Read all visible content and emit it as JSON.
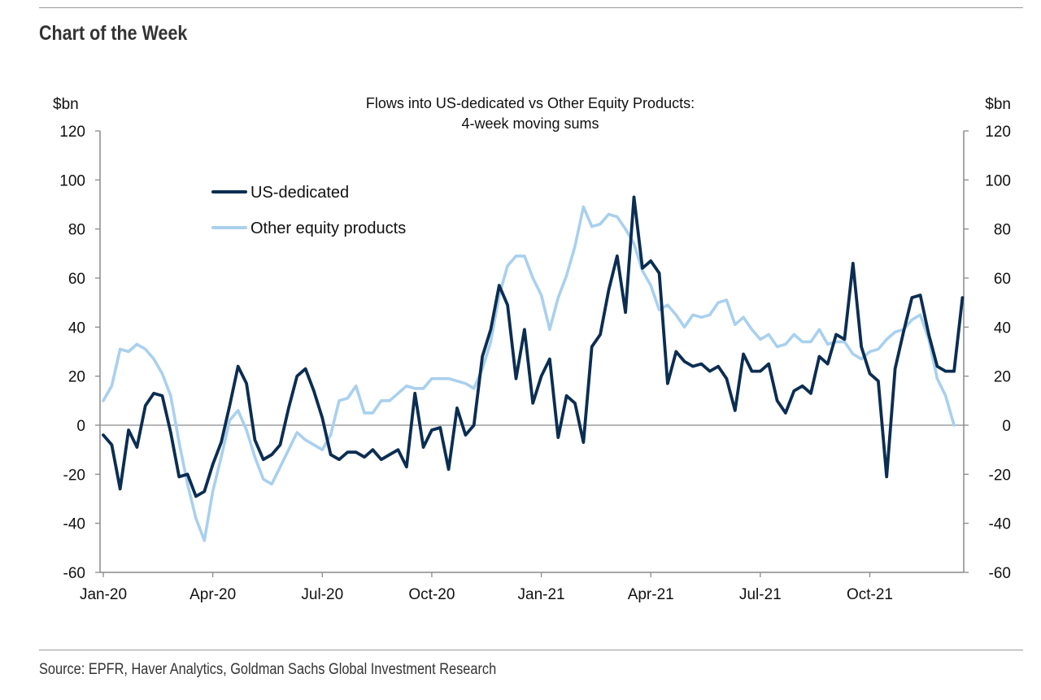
{
  "header": {
    "title": "Chart of the Week"
  },
  "footer": {
    "source": "Source: EPFR, Haver Analytics, Goldman Sachs Global Investment Research"
  },
  "colors": {
    "us": "#0b2d52",
    "other": "#a9d0ee",
    "axis": "#8a8a8a"
  },
  "chart_data": {
    "type": "line",
    "title": "Flows into US-dedicated vs Other Equity Products:",
    "subtitle": "4-week moving sums",
    "ylabel_left": "$bn",
    "ylabel_right": "$bn",
    "ylim": [
      -60,
      120
    ],
    "y_ticks": [
      "120",
      "100",
      "80",
      "60",
      "40",
      "20",
      "0",
      "-20",
      "-40",
      "-60"
    ],
    "y_tick_values": [
      120,
      100,
      80,
      60,
      40,
      20,
      0,
      -20,
      -40,
      -60
    ],
    "x_tick_labels": [
      "Jan-20",
      "Apr-20",
      "Jul-20",
      "Oct-20",
      "Jan-21",
      "Apr-21",
      "Jul-21",
      "Oct-21"
    ],
    "x_unit": "weeks from start of Jan-20",
    "xlim": [
      0,
      101
    ],
    "x_tick_weeks": [
      0,
      13,
      26,
      39,
      52,
      65,
      78,
      91
    ],
    "grid": false,
    "legend_position": "top-left",
    "series": [
      {
        "name": "US-dedicated",
        "color": "#0b2d52",
        "values": [
          -4,
          -8,
          -26,
          -2,
          -9,
          8,
          13,
          12,
          -3,
          -21,
          -20,
          -29,
          -27,
          -16,
          -7,
          8,
          24,
          17,
          -6,
          -14,
          -12,
          -8,
          7,
          20,
          23,
          14,
          3,
          -12,
          -14,
          -11,
          -11,
          -13,
          -10,
          -14,
          -12,
          -10,
          -17,
          13,
          -9,
          -2,
          -1,
          -18,
          7,
          -4,
          0,
          28,
          39,
          57,
          49,
          19,
          39,
          9,
          20,
          27,
          -5,
          12,
          9,
          -7,
          32,
          37,
          55,
          69,
          46,
          93,
          64,
          67,
          62,
          17,
          30,
          26,
          24,
          25,
          22,
          24,
          19,
          6,
          29,
          22,
          22,
          25,
          10,
          5,
          14,
          16,
          13,
          28,
          25,
          37,
          35,
          66,
          32,
          21,
          18,
          -21,
          23,
          38,
          52,
          53,
          37,
          24,
          22,
          22,
          52
        ],
        "x_start": 0
      },
      {
        "name": "Other equity products",
        "color": "#a9d0ee",
        "values": [
          10,
          16,
          31,
          30,
          33,
          31,
          27,
          21,
          12,
          -7,
          -24,
          -38,
          -47,
          -27,
          -13,
          2,
          6,
          -2,
          -13,
          -22,
          -24,
          -17,
          -10,
          -3,
          -6,
          -8,
          -10,
          -4,
          10,
          11,
          16,
          5,
          5,
          10,
          10,
          13,
          16,
          15,
          15,
          19,
          19,
          19,
          18,
          17,
          15,
          23,
          34,
          53,
          65,
          69,
          69,
          60,
          53,
          39,
          52,
          61,
          73,
          89,
          81,
          82,
          86,
          85,
          80,
          74,
          63,
          57,
          47,
          49,
          45,
          40,
          45,
          44,
          45,
          50,
          51,
          41,
          44,
          39,
          35,
          37,
          32,
          33,
          37,
          34,
          34,
          39,
          33,
          34,
          34,
          29,
          27,
          30,
          31,
          35,
          38,
          39,
          43,
          45,
          35,
          19,
          12,
          0
        ],
        "x_start": 0
      }
    ]
  }
}
